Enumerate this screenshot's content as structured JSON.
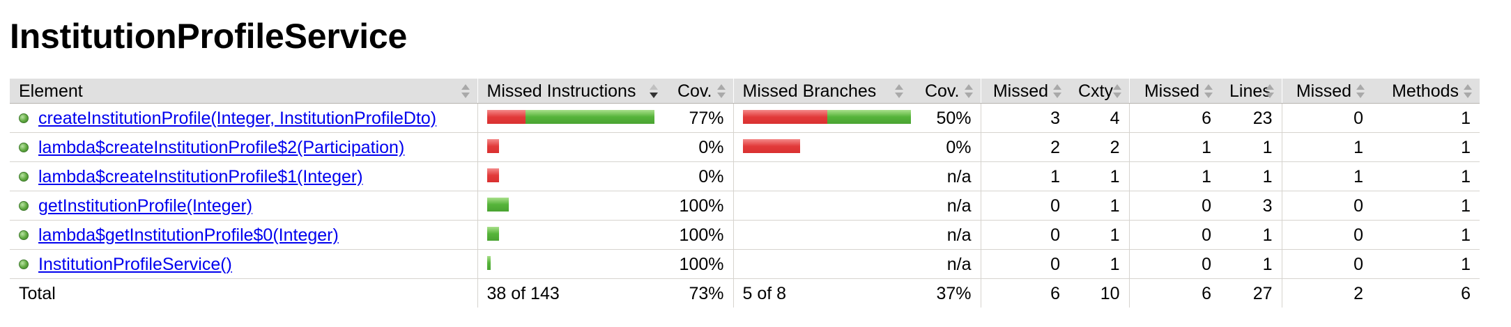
{
  "page": {
    "title": "InstitutionProfileService"
  },
  "table": {
    "headers": {
      "element": "Element",
      "missed_instructions": "Missed Instructions",
      "cov1": "Cov.",
      "missed_branches": "Missed Branches",
      "cov2": "Cov.",
      "missed_cxty": "Missed",
      "cxty": "Cxty",
      "missed_lines": "Missed",
      "lines": "Lines",
      "missed_methods": "Missed",
      "methods": "Methods"
    },
    "rows": [
      {
        "name": "createInstitutionProfile(Integer, InstitutionProfileDto)",
        "instr_missed_fraction": 0.23,
        "instr_bar_fraction": 1.0,
        "instr_cov": "77%",
        "branch_missed_fraction": 0.5,
        "branch_bar_fraction": 1.0,
        "branch_cov": "50%",
        "missed_cxty": "3",
        "cxty": "4",
        "missed_lines": "6",
        "lines": "23",
        "missed_methods": "0",
        "methods": "1"
      },
      {
        "name": "lambda$createInstitutionProfile$2(Participation)",
        "instr_missed_fraction": 1.0,
        "instr_bar_fraction": 0.07,
        "instr_cov": "0%",
        "branch_missed_fraction": 1.0,
        "branch_bar_fraction": 0.34,
        "branch_cov": "0%",
        "missed_cxty": "2",
        "cxty": "2",
        "missed_lines": "1",
        "lines": "1",
        "missed_methods": "1",
        "methods": "1"
      },
      {
        "name": "lambda$createInstitutionProfile$1(Integer)",
        "instr_missed_fraction": 1.0,
        "instr_bar_fraction": 0.07,
        "instr_cov": "0%",
        "branch_missed_fraction": 0,
        "branch_bar_fraction": 0,
        "branch_cov": "n/a",
        "missed_cxty": "1",
        "cxty": "1",
        "missed_lines": "1",
        "lines": "1",
        "missed_methods": "1",
        "methods": "1"
      },
      {
        "name": "getInstitutionProfile(Integer)",
        "instr_missed_fraction": 0,
        "instr_bar_fraction": 0.13,
        "instr_cov": "100%",
        "branch_missed_fraction": 0,
        "branch_bar_fraction": 0,
        "branch_cov": "n/a",
        "missed_cxty": "0",
        "cxty": "1",
        "missed_lines": "0",
        "lines": "3",
        "missed_methods": "0",
        "methods": "1"
      },
      {
        "name": "lambda$getInstitutionProfile$0(Integer)",
        "instr_missed_fraction": 0,
        "instr_bar_fraction": 0.07,
        "instr_cov": "100%",
        "branch_missed_fraction": 0,
        "branch_bar_fraction": 0,
        "branch_cov": "n/a",
        "missed_cxty": "0",
        "cxty": "1",
        "missed_lines": "0",
        "lines": "1",
        "missed_methods": "0",
        "methods": "1"
      },
      {
        "name": "InstitutionProfileService()",
        "instr_missed_fraction": 0,
        "instr_bar_fraction": 0.02,
        "instr_cov": "100%",
        "branch_missed_fraction": 0,
        "branch_bar_fraction": 0,
        "branch_cov": "n/a",
        "missed_cxty": "0",
        "cxty": "1",
        "missed_lines": "0",
        "lines": "1",
        "missed_methods": "0",
        "methods": "1"
      }
    ],
    "totals": {
      "label": "Total",
      "instr": "38 of 143",
      "instr_cov": "73%",
      "branches": "5 of 8",
      "branch_cov": "37%",
      "missed_cxty": "6",
      "cxty": "10",
      "missed_lines": "6",
      "lines": "27",
      "missed_methods": "2",
      "methods": "6"
    }
  },
  "colors": {
    "missed_bar": "#e23b3b",
    "covered_bar": "#56b43a",
    "link": "#0000ee",
    "header_bg": "#e0e0e0"
  },
  "icons": {
    "row_icon": "method-icon",
    "sort": "sort-icon",
    "sort_active": "sort-desc-icon"
  }
}
